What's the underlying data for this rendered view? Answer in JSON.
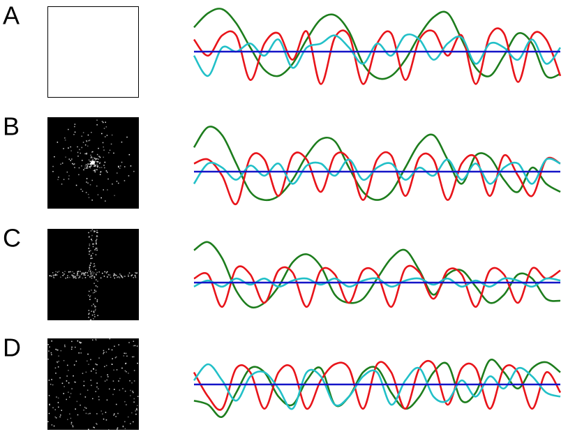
{
  "panels": [
    {
      "label": "A",
      "image": "blank",
      "series": [
        {
          "color": "#1d7d1d",
          "values": [
            0.6,
            0.95,
            1.05,
            0.7,
            0.1,
            -0.45,
            -0.6,
            -0.3,
            0.3,
            0.8,
            0.9,
            0.5,
            -0.3,
            -0.65,
            -0.6,
            -0.2,
            0.4,
            0.85,
            0.95,
            0.3,
            -0.4,
            -0.6,
            -0.1,
            0.45,
            0.2,
            -0.6,
            -0.55
          ]
        },
        {
          "color": "#e8141a",
          "values": [
            0.3,
            -0.1,
            0.4,
            0.4,
            -0.7,
            0.2,
            0.45,
            -0.2,
            0.5,
            -0.8,
            0.35,
            0.4,
            -0.8,
            0.2,
            0.45,
            -0.7,
            0.3,
            0.5,
            -0.1,
            0.4,
            -0.8,
            0.4,
            0.45,
            -0.75,
            0.4,
            0.3,
            -0.6
          ]
        },
        {
          "color": "#22c0c8",
          "values": [
            -0.1,
            -0.6,
            0.1,
            0.0,
            0.2,
            -0.1,
            0.3,
            -0.4,
            0.1,
            0.2,
            0.4,
            0.1,
            -0.3,
            0.2,
            -0.1,
            0.4,
            0.3,
            -0.2,
            0.2,
            0.35,
            -0.3,
            0.2,
            0.1,
            -0.2,
            0.3,
            -0.3,
            0.1
          ]
        },
        {
          "color": "#1414c8",
          "values": [
            0,
            0,
            0,
            0,
            0,
            0,
            0,
            0,
            0,
            0,
            0,
            0,
            0,
            0,
            0,
            0,
            0,
            0,
            0,
            0,
            0,
            0,
            0,
            0,
            0,
            0,
            0
          ]
        }
      ]
    },
    {
      "label": "B",
      "image": "radial",
      "series": [
        {
          "color": "#1d7d1d",
          "values": [
            0.6,
            1.1,
            0.9,
            0.2,
            -0.5,
            -0.7,
            -0.6,
            -0.2,
            0.4,
            0.8,
            0.75,
            0.1,
            -0.5,
            -0.7,
            -0.5,
            0.1,
            0.7,
            0.9,
            0.3,
            -0.3,
            0.4,
            0.35,
            -0.2,
            -0.5,
            0.1,
            -0.3,
            -0.5
          ]
        },
        {
          "color": "#e8141a",
          "values": [
            0.2,
            0.3,
            -0.1,
            -0.8,
            0.35,
            0.3,
            -0.6,
            0.4,
            0.3,
            -0.5,
            0.4,
            0.3,
            -0.7,
            0.3,
            0.4,
            -0.6,
            0.35,
            0.3,
            -0.7,
            0.2,
            0.35,
            -0.6,
            0.4,
            -0.1,
            -0.6,
            0.3,
            0.2
          ]
        },
        {
          "color": "#22c0c8",
          "values": [
            -0.3,
            0.2,
            0.1,
            -0.2,
            0.15,
            -0.1,
            0.2,
            -0.3,
            0.15,
            0.2,
            -0.1,
            0.3,
            -0.2,
            0.1,
            0.2,
            -0.2,
            0.1,
            -0.1,
            0.3,
            -0.2,
            0.2,
            -0.3,
            0.1,
            0.2,
            -0.3,
            0.3,
            0.2
          ]
        },
        {
          "color": "#1414c8",
          "values": [
            0,
            0,
            0,
            0,
            0,
            0,
            0,
            0,
            0,
            0,
            0,
            0,
            0,
            0,
            0,
            0,
            0,
            0,
            0,
            0,
            0,
            0,
            0,
            0,
            0,
            0,
            0
          ]
        }
      ]
    },
    {
      "label": "C",
      "image": "cross",
      "series": [
        {
          "color": "#1d7d1d",
          "values": [
            0.8,
            1.0,
            0.6,
            -0.2,
            -0.6,
            -0.5,
            -0.1,
            0.5,
            0.7,
            0.4,
            -0.3,
            -0.5,
            -0.4,
            0.1,
            0.6,
            0.8,
            0.3,
            -0.3,
            0.2,
            0.3,
            -0.1,
            -0.5,
            -0.3,
            0.2,
            0.1,
            -0.4,
            -0.45
          ]
        },
        {
          "color": "#e8141a",
          "values": [
            0.1,
            0.2,
            -0.6,
            0.35,
            0.2,
            -0.5,
            0.3,
            0.25,
            -0.6,
            0.3,
            0.2,
            -0.5,
            0.3,
            0.2,
            -0.6,
            0.35,
            0.25,
            -0.4,
            0.3,
            0.2,
            -0.6,
            0.3,
            0.2,
            -0.5,
            0.35,
            0.1,
            0.3
          ]
        },
        {
          "color": "#22c0c8",
          "values": [
            -0.1,
            0.05,
            -0.1,
            0.1,
            -0.05,
            0.1,
            -0.1,
            0.05,
            0.1,
            -0.05,
            0.1,
            -0.1,
            0.05,
            0.1,
            -0.1,
            0.05,
            0.1,
            -0.05,
            0.1,
            -0.1,
            0.05,
            -0.1,
            0.1,
            0.05,
            -0.1,
            0.1,
            0.05
          ]
        },
        {
          "color": "#1414c8",
          "values": [
            0,
            0,
            0,
            0,
            0,
            0,
            0,
            0,
            0,
            0,
            0,
            0,
            0,
            0,
            0,
            0,
            0,
            0,
            0,
            0,
            0,
            0,
            0,
            0,
            0,
            0,
            0
          ]
        }
      ]
    },
    {
      "label": "D",
      "image": "uniform",
      "series": [
        {
          "color": "#1d7d1d",
          "values": [
            -0.4,
            -0.5,
            -0.8,
            -0.2,
            0.4,
            0.3,
            -0.3,
            -0.5,
            0.1,
            0.4,
            -0.5,
            -0.3,
            0.3,
            0.4,
            -0.2,
            -0.6,
            -0.3,
            0.3,
            0.5,
            -0.4,
            -0.2,
            0.6,
            0.3,
            -0.1,
            0.4,
            0.55,
            0.3
          ]
        },
        {
          "color": "#e8141a",
          "values": [
            0.3,
            -0.3,
            -0.6,
            0.4,
            0.3,
            -0.6,
            0.3,
            0.4,
            -0.6,
            0.1,
            0.5,
            0.4,
            -0.6,
            0.5,
            0.3,
            -0.6,
            0.4,
            0.5,
            -0.5,
            0.4,
            0.4,
            -0.6,
            0.4,
            0.3,
            -0.6,
            0.3,
            -0.2
          ]
        },
        {
          "color": "#22c0c8",
          "values": [
            0.1,
            0.5,
            0.1,
            -0.4,
            0.2,
            0.3,
            -0.1,
            -0.6,
            0.3,
            0.2,
            -0.5,
            -0.3,
            0.2,
            0.3,
            -0.5,
            0.1,
            0.4,
            -0.3,
            -0.4,
            0.1,
            -0.3,
            0.2,
            -0.1,
            0.4,
            0.2,
            -0.2,
            -0.3
          ]
        },
        {
          "color": "#1414c8",
          "values": [
            0,
            0,
            0,
            0,
            0,
            0,
            0,
            0,
            0,
            0,
            0,
            0,
            0,
            0,
            0,
            0,
            0,
            0,
            0,
            0,
            0,
            0,
            0,
            0,
            0,
            0,
            0
          ]
        }
      ]
    }
  ]
}
